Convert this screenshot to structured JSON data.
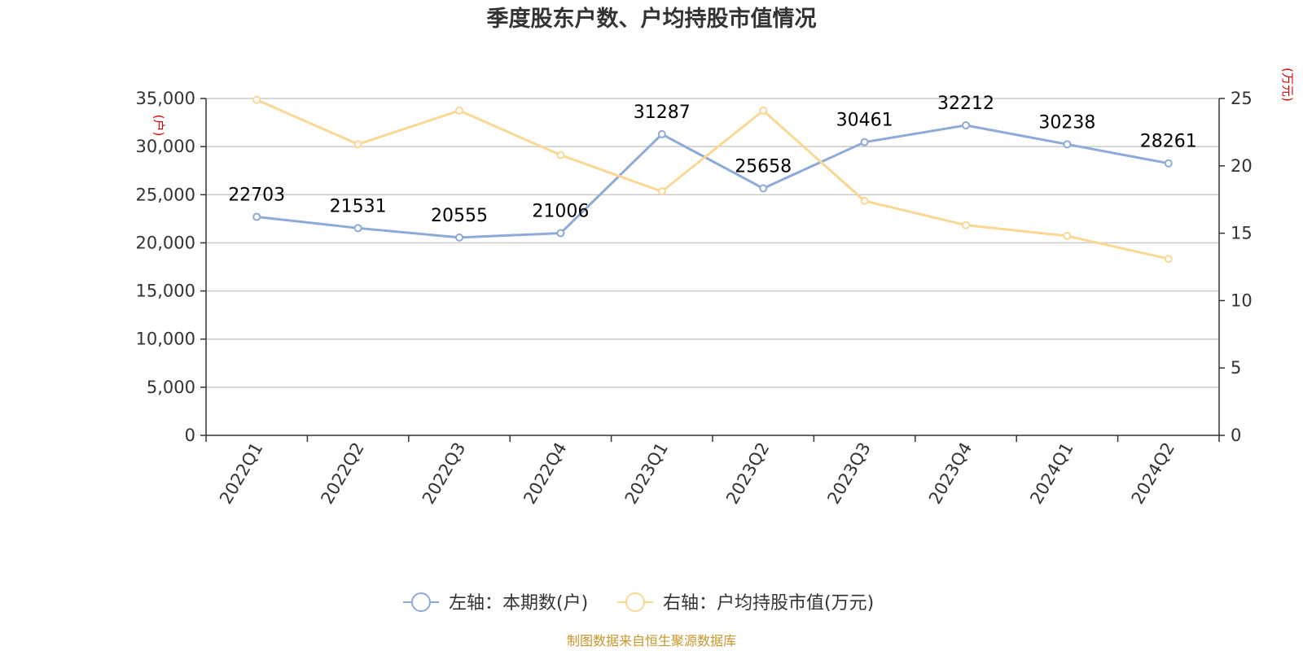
{
  "chart_data": {
    "type": "line",
    "title": "季度股东户数、户均持股市值情况",
    "categories": [
      "2022Q1",
      "2022Q2",
      "2022Q3",
      "2022Q4",
      "2023Q1",
      "2023Q2",
      "2023Q3",
      "2023Q4",
      "2024Q1",
      "2024Q2"
    ],
    "series": [
      {
        "name": "左轴：本期数(户)",
        "axis": "left",
        "color": "#8eaad8",
        "values": [
          22703,
          21531,
          20555,
          21006,
          31287,
          25658,
          30461,
          32212,
          30238,
          28261
        ],
        "data_labels": [
          "22703",
          "21531",
          "20555",
          "21006",
          "31287",
          "25658",
          "30461",
          "32212",
          "30238",
          "28261"
        ]
      },
      {
        "name": "右轴：户均持股市值(万元)",
        "axis": "right",
        "color": "#fad894",
        "values": [
          24.9,
          21.6,
          24.1,
          20.8,
          18.1,
          24.1,
          17.4,
          15.6,
          14.8,
          13.1
        ]
      }
    ],
    "left_axis": {
      "unit": "(户)",
      "ylim": [
        0,
        35000
      ],
      "ticks": [
        0,
        5000,
        10000,
        15000,
        20000,
        25000,
        30000,
        35000
      ],
      "tick_labels": [
        "0",
        "5,000",
        "10,000",
        "15,000",
        "20,000",
        "25,000",
        "30,000",
        "35,000"
      ]
    },
    "right_axis": {
      "unit": "(万元)",
      "ylim": [
        0,
        25
      ],
      "ticks": [
        0,
        5,
        10,
        15,
        20,
        25
      ],
      "tick_labels": [
        "0",
        "5",
        "10",
        "15",
        "20",
        "25"
      ]
    },
    "grid": true,
    "legend_position": "bottom"
  },
  "source_text": "制图数据来自恒生聚源数据库",
  "colors": {
    "gridline": "#cccccc",
    "axis": "#333333",
    "unit_label": "#e00000",
    "source": "#c9962b"
  }
}
